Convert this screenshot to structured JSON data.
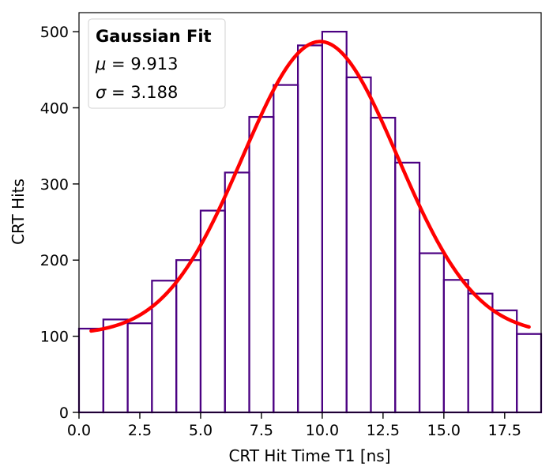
{
  "chart_data": {
    "type": "histogram",
    "title": "",
    "xlabel": "CRT Hit Time T1 [ns]",
    "ylabel": "CRT Hits",
    "xlim": [
      0,
      19
    ],
    "ylim": [
      0,
      525
    ],
    "xticks": [
      0.0,
      2.5,
      5.0,
      7.5,
      10.0,
      12.5,
      15.0,
      17.5
    ],
    "xtick_labels": [
      "0.0",
      "2.5",
      "5.0",
      "7.5",
      "10.0",
      "12.5",
      "15.0",
      "17.5"
    ],
    "yticks": [
      0,
      100,
      200,
      300,
      400,
      500
    ],
    "ytick_labels": [
      "0",
      "100",
      "200",
      "300",
      "400",
      "500"
    ],
    "histogram": {
      "bin_edges": [
        0,
        1,
        2,
        3,
        4,
        5,
        6,
        7,
        8,
        9,
        10,
        11,
        12,
        13,
        14,
        15,
        16,
        17,
        18,
        19
      ],
      "counts": [
        110,
        122,
        117,
        173,
        200,
        265,
        315,
        388,
        430,
        482,
        500,
        440,
        387,
        328,
        209,
        174,
        156,
        134,
        103
      ],
      "color": "#4b0082"
    },
    "fit": {
      "model": "gaussian + constant",
      "mu": 9.913,
      "sigma": 3.188,
      "amplitude": 385,
      "offset": 102,
      "x_range": [
        0.5,
        18.5
      ],
      "color": "#ff0000"
    },
    "grid": false,
    "legend": {
      "placement": "top-left",
      "title": "Gaussian Fit",
      "mu_symbol": "μ",
      "mu_text": " = 9.913",
      "sigma_symbol": "σ",
      "sigma_text": " = 3.188"
    }
  }
}
